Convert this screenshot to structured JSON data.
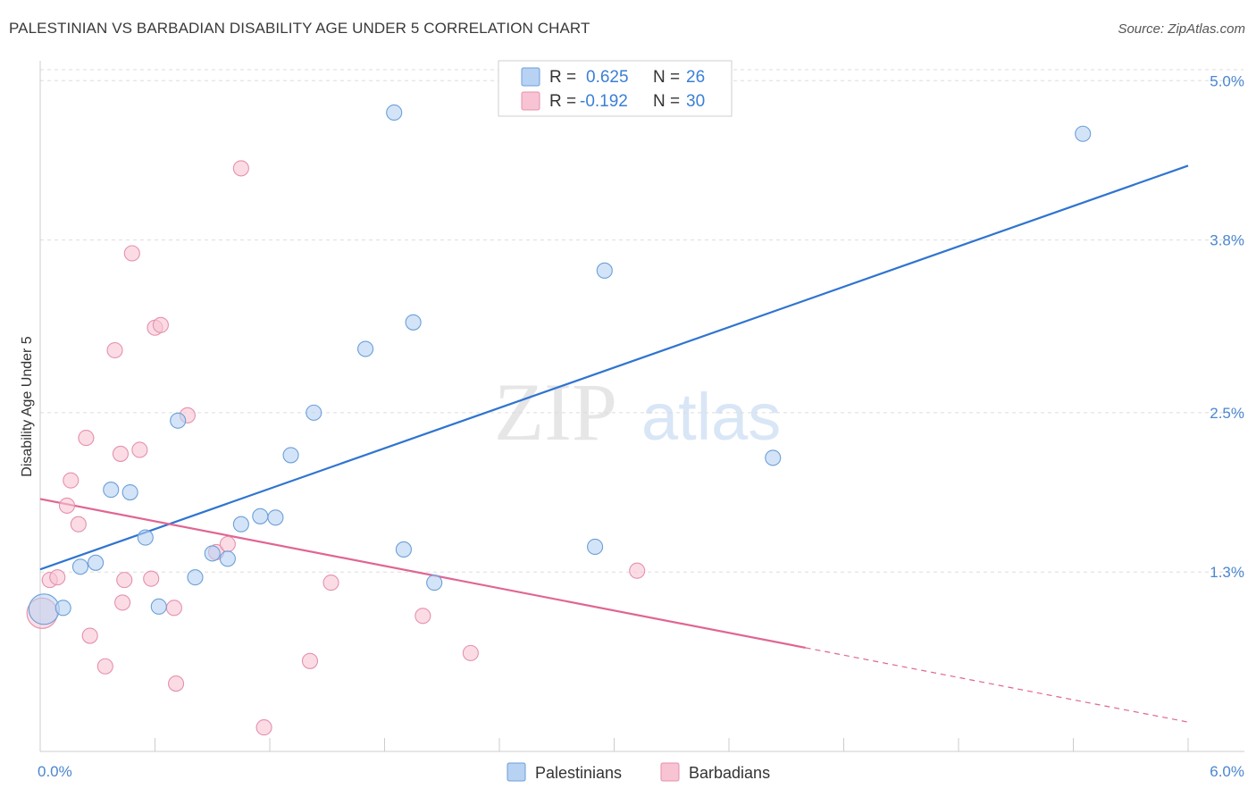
{
  "header": {
    "title": "PALESTINIAN VS BARBADIAN DISABILITY AGE UNDER 5 CORRELATION CHART",
    "source": "Source: ZipAtlas.com"
  },
  "watermark": {
    "part1": "ZIP",
    "part2": "atlas"
  },
  "legend": {
    "rows": [
      {
        "r_label": "R =",
        "r_value": "0.625",
        "n_label": "N =",
        "n_value": "26"
      },
      {
        "r_label": "R =",
        "r_value": "-0.192",
        "n_label": "N =",
        "n_value": "30"
      }
    ]
  },
  "bottom_legend": {
    "items": [
      "Palestinians",
      "Barbadians"
    ]
  },
  "colors": {
    "blue_fill": "#b8d2f3",
    "blue_stroke": "#6b9fd8",
    "blue_line": "#2f74d0",
    "pink_fill": "#f8c4d4",
    "pink_stroke": "#e590ad",
    "pink_line": "#e06592",
    "tick_label": "#4a86d0",
    "grid": "#dddddd"
  },
  "chart_data": {
    "type": "scatter",
    "title": "PALESTINIAN VS BARBADIAN DISABILITY AGE UNDER 5 CORRELATION CHART",
    "xlabel": "",
    "ylabel": "Disability Age Under 5",
    "xlim": [
      0,
      6.0
    ],
    "ylim": [
      0.05,
      5.15
    ],
    "x_tick_labels": [
      "0.0%",
      "6.0%"
    ],
    "y_ticks": [
      1.3,
      2.5,
      3.8,
      5.0
    ],
    "y_tick_labels": [
      "1.3%",
      "2.5%",
      "3.8%",
      "5.0%"
    ],
    "legend_position": "top-center",
    "series": [
      {
        "name": "Palestinians",
        "r": 0.625,
        "n": 26,
        "points": [
          {
            "x": 0.02,
            "y": 1.02,
            "big": true
          },
          {
            "x": 0.12,
            "y": 1.03
          },
          {
            "x": 0.21,
            "y": 1.34
          },
          {
            "x": 0.29,
            "y": 1.37
          },
          {
            "x": 0.37,
            "y": 1.92
          },
          {
            "x": 0.47,
            "y": 1.9
          },
          {
            "x": 0.55,
            "y": 1.56
          },
          {
            "x": 0.62,
            "y": 1.04
          },
          {
            "x": 0.72,
            "y": 2.44
          },
          {
            "x": 0.81,
            "y": 1.26
          },
          {
            "x": 0.9,
            "y": 1.44
          },
          {
            "x": 0.98,
            "y": 1.4
          },
          {
            "x": 1.05,
            "y": 1.66
          },
          {
            "x": 1.15,
            "y": 1.72
          },
          {
            "x": 1.23,
            "y": 1.71
          },
          {
            "x": 1.31,
            "y": 2.18
          },
          {
            "x": 1.43,
            "y": 2.5
          },
          {
            "x": 1.7,
            "y": 2.98
          },
          {
            "x": 1.85,
            "y": 4.76
          },
          {
            "x": 1.9,
            "y": 1.47
          },
          {
            "x": 1.95,
            "y": 3.18
          },
          {
            "x": 2.06,
            "y": 1.22
          },
          {
            "x": 2.9,
            "y": 1.49
          },
          {
            "x": 2.95,
            "y": 3.57
          },
          {
            "x": 3.83,
            "y": 2.16
          },
          {
            "x": 5.45,
            "y": 4.6
          }
        ],
        "trend": {
          "x1": 0.0,
          "y1": 1.32,
          "x2": 6.0,
          "y2": 4.36,
          "dashed_from": null
        }
      },
      {
        "name": "Barbadians",
        "r": -0.192,
        "n": 30,
        "points": [
          {
            "x": 0.01,
            "y": 0.99,
            "big": true
          },
          {
            "x": 0.05,
            "y": 1.24
          },
          {
            "x": 0.09,
            "y": 1.26
          },
          {
            "x": 0.14,
            "y": 1.8
          },
          {
            "x": 0.16,
            "y": 1.99
          },
          {
            "x": 0.2,
            "y": 1.66
          },
          {
            "x": 0.24,
            "y": 2.31
          },
          {
            "x": 0.26,
            "y": 0.82
          },
          {
            "x": 0.34,
            "y": 0.59
          },
          {
            "x": 0.42,
            "y": 2.19
          },
          {
            "x": 0.39,
            "y": 2.97
          },
          {
            "x": 0.43,
            "y": 1.07
          },
          {
            "x": 0.44,
            "y": 1.24
          },
          {
            "x": 0.48,
            "y": 3.7
          },
          {
            "x": 0.52,
            "y": 2.22
          },
          {
            "x": 0.58,
            "y": 1.25
          },
          {
            "x": 0.6,
            "y": 3.14
          },
          {
            "x": 0.63,
            "y": 3.16
          },
          {
            "x": 0.7,
            "y": 1.03
          },
          {
            "x": 0.71,
            "y": 0.46
          },
          {
            "x": 0.77,
            "y": 2.48
          },
          {
            "x": 0.92,
            "y": 1.45
          },
          {
            "x": 0.98,
            "y": 1.51
          },
          {
            "x": 1.05,
            "y": 4.34
          },
          {
            "x": 1.17,
            "y": 0.13
          },
          {
            "x": 1.41,
            "y": 0.63
          },
          {
            "x": 1.52,
            "y": 1.22
          },
          {
            "x": 2.0,
            "y": 0.97
          },
          {
            "x": 2.25,
            "y": 0.69
          },
          {
            "x": 3.12,
            "y": 1.31
          }
        ],
        "trend": {
          "x1": 0.0,
          "y1": 1.85,
          "x2": 6.0,
          "y2": 0.17,
          "dashed_from": 4.0
        }
      }
    ]
  }
}
